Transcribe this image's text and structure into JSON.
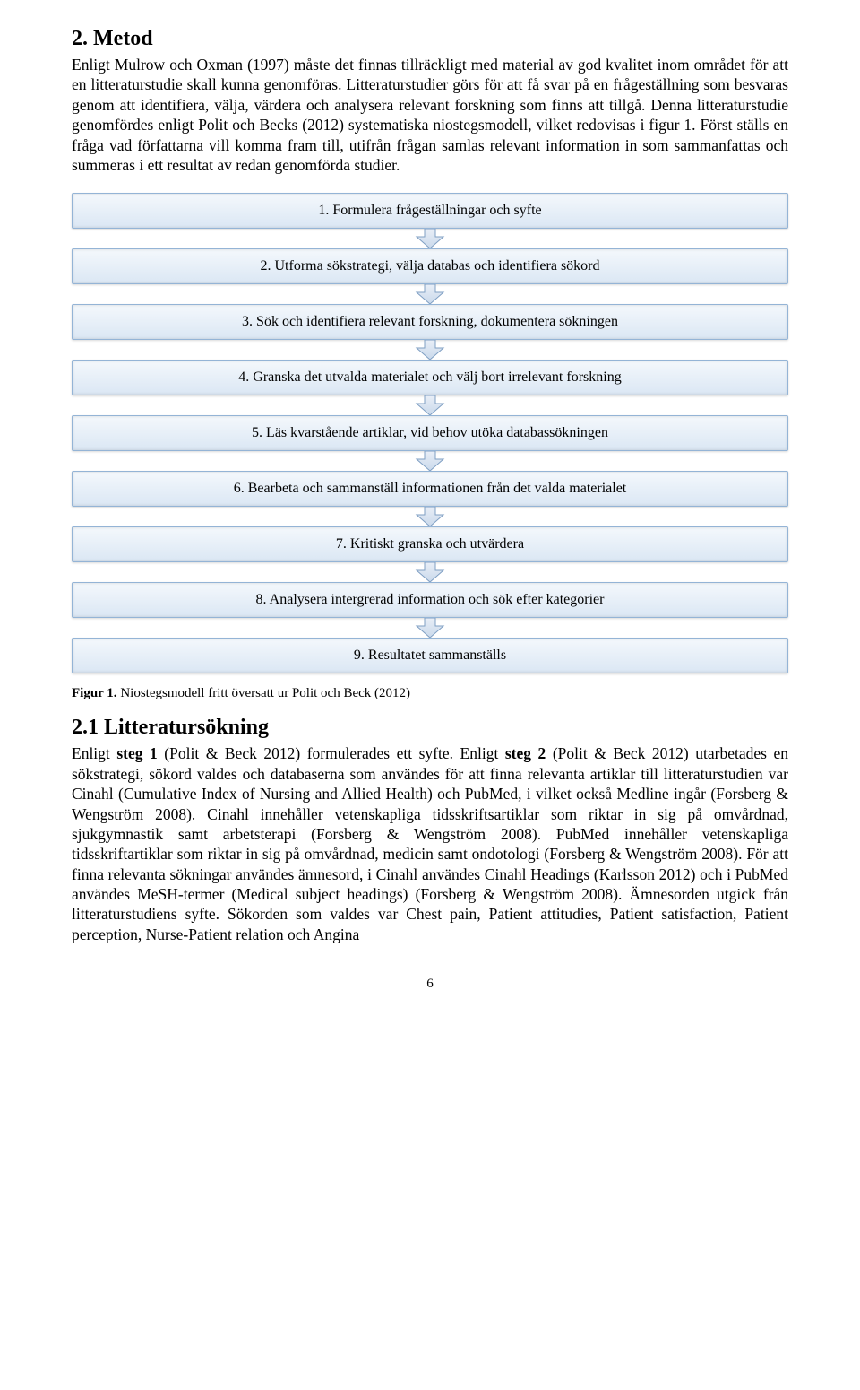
{
  "heading1": "2. Metod",
  "paragraph1_parts": [
    {
      "t": "Enligt Mulrow och Oxman (1997) måste det finnas tillräckligt med material av god kvalitet inom området för att en litteraturstudie skall kunna genomföras. Litteraturstudier görs för att få svar på en frågeställning som besvaras genom att identifiera, välja, värdera och analysera relevant forskning som finns att tillgå. Denna litteraturstudie genomfördes enligt Polit och Becks (2012) systematiska niostegsmodell, vilket redovisas i figur 1. Först ställs en fråga vad författarna vill komma fram till, utifrån frågan samlas relevant information in som sammanfattas och summeras i ett resultat av redan genomförda studier.",
      "b": false
    }
  ],
  "flowchart": {
    "background_gradient_top": "#f4f8fc",
    "background_gradient_bottom": "#dbe7f4",
    "border_color": "#94b4d6",
    "arrow_fill_top": "#e9eff7",
    "arrow_fill_bottom": "#c9d9eb",
    "arrow_stroke": "#7f9fc3",
    "steps": [
      "1. Formulera frågeställningar och syfte",
      "2. Utforma sökstrategi, välja databas och identifiera sökord",
      "3. Sök och identifiera relevant forskning, dokumentera sökningen",
      "4. Granska det utvalda materialet och välj bort irrelevant forskning",
      "5. Läs kvarstående artiklar, vid behov utöka databassökningen",
      "6. Bearbeta och sammanställ informationen från det valda materialet",
      "7. Kritiskt granska och utvärdera",
      "8. Analysera intergrerad information och sök efter kategorier",
      "9. Resultatet sammanställs"
    ]
  },
  "caption_bold": "Figur 1. ",
  "caption_rest": "Niostegsmodell fritt översatt ur Polit och Beck (2012)",
  "heading2": "2.1 Litteratursökning",
  "paragraph2_parts": [
    {
      "t": "Enligt ",
      "b": false
    },
    {
      "t": "steg 1",
      "b": true
    },
    {
      "t": " (Polit & Beck 2012) formulerades ett syfte. Enligt ",
      "b": false
    },
    {
      "t": "steg 2",
      "b": true
    },
    {
      "t": " (Polit & Beck 2012) utarbetades en sökstrategi, sökord valdes och databaserna som användes för att finna relevanta artiklar till litteraturstudien var Cinahl (Cumulative Index of Nursing and Allied Health) och PubMed, i vilket också Medline ingår (Forsberg & Wengström 2008). Cinahl innehåller vetenskapliga tidsskriftsartiklar som riktar in sig på omvårdnad, sjukgymnastik samt arbetsterapi (Forsberg & Wengström 2008). PubMed innehåller vetenskapliga tidsskriftartiklar som riktar in sig på omvårdnad, medicin samt ondotologi (Forsberg & Wengström 2008). För att finna relevanta sökningar användes ämnesord, i Cinahl användes Cinahl Headings (Karlsson 2012) och i PubMed användes MeSH-termer (Medical subject headings) (Forsberg & Wengström 2008). Ämnesorden utgick från litteraturstudiens syfte. Sökorden som valdes var Chest pain, Patient attitudies, Patient satisfaction, Patient perception, Nurse-Patient relation och Angina",
      "b": false
    }
  ],
  "page_number": "6"
}
